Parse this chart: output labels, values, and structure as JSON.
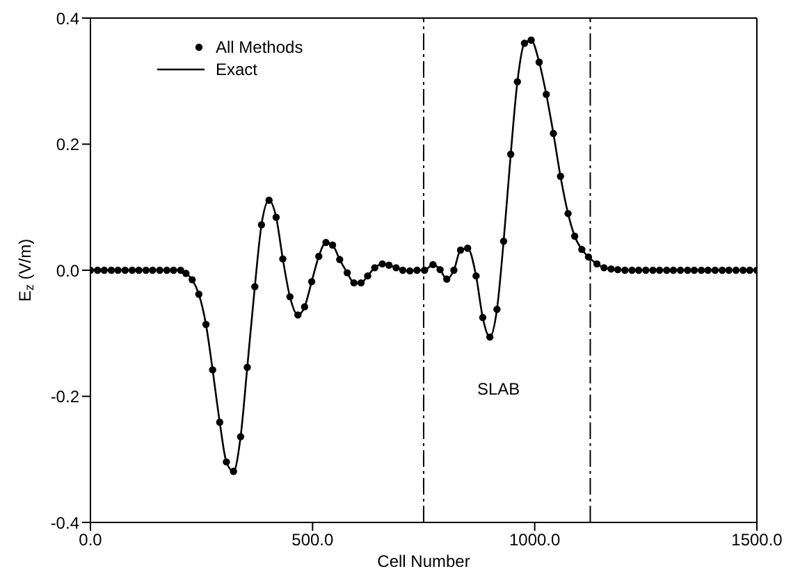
{
  "chart_data": {
    "type": "line",
    "xlabel": "Cell Number",
    "ylabel": "E$_{z}$ (V/m)",
    "x": [
      0,
      16,
      31,
      47,
      62,
      78,
      94,
      109,
      125,
      140,
      156,
      172,
      187,
      203,
      215,
      229,
      244,
      260,
      275,
      291,
      306,
      322,
      338,
      353,
      370,
      385,
      402,
      418,
      433,
      449,
      467,
      482,
      498,
      514,
      530,
      545,
      561,
      578,
      593,
      609,
      624,
      640,
      657,
      672,
      688,
      703,
      719,
      735,
      752,
      771,
      787,
      802,
      818,
      833,
      849,
      868,
      883,
      899,
      915,
      930,
      946,
      961,
      977,
      992,
      1010,
      1026,
      1042,
      1058,
      1075,
      1090,
      1106,
      1121,
      1140,
      1156,
      1172,
      1187,
      1203,
      1219,
      1234,
      1250,
      1266,
      1281,
      1297,
      1312,
      1328,
      1344,
      1359,
      1375,
      1390,
      1406,
      1422,
      1437,
      1453,
      1469,
      1484,
      1500
    ],
    "series": [
      {
        "name": "All Methods",
        "type": "scatter",
        "color": "#000000",
        "marker": "circle",
        "values": [
          0,
          0,
          0,
          0,
          0,
          0,
          0,
          0,
          0,
          0,
          0,
          0,
          0,
          0,
          -0.005,
          -0.015,
          -0.038,
          -0.086,
          -0.158,
          -0.241,
          -0.304,
          -0.319,
          -0.264,
          -0.154,
          -0.026,
          0.072,
          0.111,
          0.084,
          0.018,
          -0.042,
          -0.071,
          -0.058,
          -0.018,
          0.022,
          0.044,
          0.04,
          0.017,
          -0.004,
          -0.02,
          -0.02,
          -0.009,
          0.004,
          0.01,
          0.008,
          0.004,
          0,
          -0.001,
          0,
          0,
          0.009,
          0.001,
          -0.014,
          0,
          0.032,
          0.035,
          -0.009,
          -0.075,
          -0.106,
          -0.062,
          0.046,
          0.184,
          0.299,
          0.36,
          0.365,
          0.33,
          0.279,
          0.217,
          0.149,
          0.09,
          0.054,
          0.033,
          0.021,
          0.01,
          0.004,
          0.002,
          0.001,
          0,
          0,
          0,
          0,
          0,
          0,
          0,
          0,
          0,
          0,
          0,
          0,
          0,
          0,
          0,
          0,
          0,
          0,
          0,
          0
        ]
      },
      {
        "name": "Exact",
        "type": "line",
        "color": "#000000",
        "line_style": "solid",
        "values": [
          0,
          0,
          0,
          0,
          0,
          0,
          0,
          0,
          0,
          0,
          0,
          0,
          0,
          0,
          -0.005,
          -0.015,
          -0.038,
          -0.086,
          -0.158,
          -0.241,
          -0.304,
          -0.319,
          -0.264,
          -0.154,
          -0.026,
          0.072,
          0.111,
          0.084,
          0.018,
          -0.042,
          -0.071,
          -0.058,
          -0.018,
          0.022,
          0.044,
          0.04,
          0.017,
          -0.004,
          -0.02,
          -0.02,
          -0.009,
          0.004,
          0.01,
          0.008,
          0.004,
          0,
          -0.001,
          0,
          0,
          0.009,
          0.001,
          -0.014,
          0,
          0.032,
          0.035,
          -0.009,
          -0.075,
          -0.106,
          -0.062,
          0.046,
          0.184,
          0.299,
          0.36,
          0.365,
          0.33,
          0.279,
          0.217,
          0.149,
          0.09,
          0.054,
          0.033,
          0.021,
          0.01,
          0.004,
          0.002,
          0.001,
          0,
          0,
          0,
          0,
          0,
          0,
          0,
          0,
          0,
          0,
          0,
          0,
          0,
          0,
          0,
          0,
          0,
          0,
          0,
          0
        ]
      }
    ],
    "xlim": [
      0,
      1500
    ],
    "xticks": [
      {
        "value": 0,
        "label": "0.0"
      },
      {
        "value": 500,
        "label": "500.0"
      },
      {
        "value": 1000,
        "label": "1000.0"
      },
      {
        "value": 1500,
        "label": "1500.0"
      }
    ],
    "ylim": [
      -0.4,
      0.4
    ],
    "yticks": [
      {
        "value": -0.4,
        "label": "-0.4"
      },
      {
        "value": -0.2,
        "label": "-0.2"
      },
      {
        "value": 0,
        "label": "0.0"
      },
      {
        "value": 0.2,
        "label": "0.2"
      },
      {
        "value": 0.4,
        "label": "0.4"
      }
    ],
    "ref_lines": [
      {
        "axis": "x",
        "value": 750,
        "color": "#000000",
        "line_style": "dashed"
      },
      {
        "axis": "x",
        "value": 1125,
        "color": "#000000",
        "line_style": "dashed"
      }
    ],
    "annotations": [
      "SLAB"
    ],
    "legend": "top left"
  }
}
